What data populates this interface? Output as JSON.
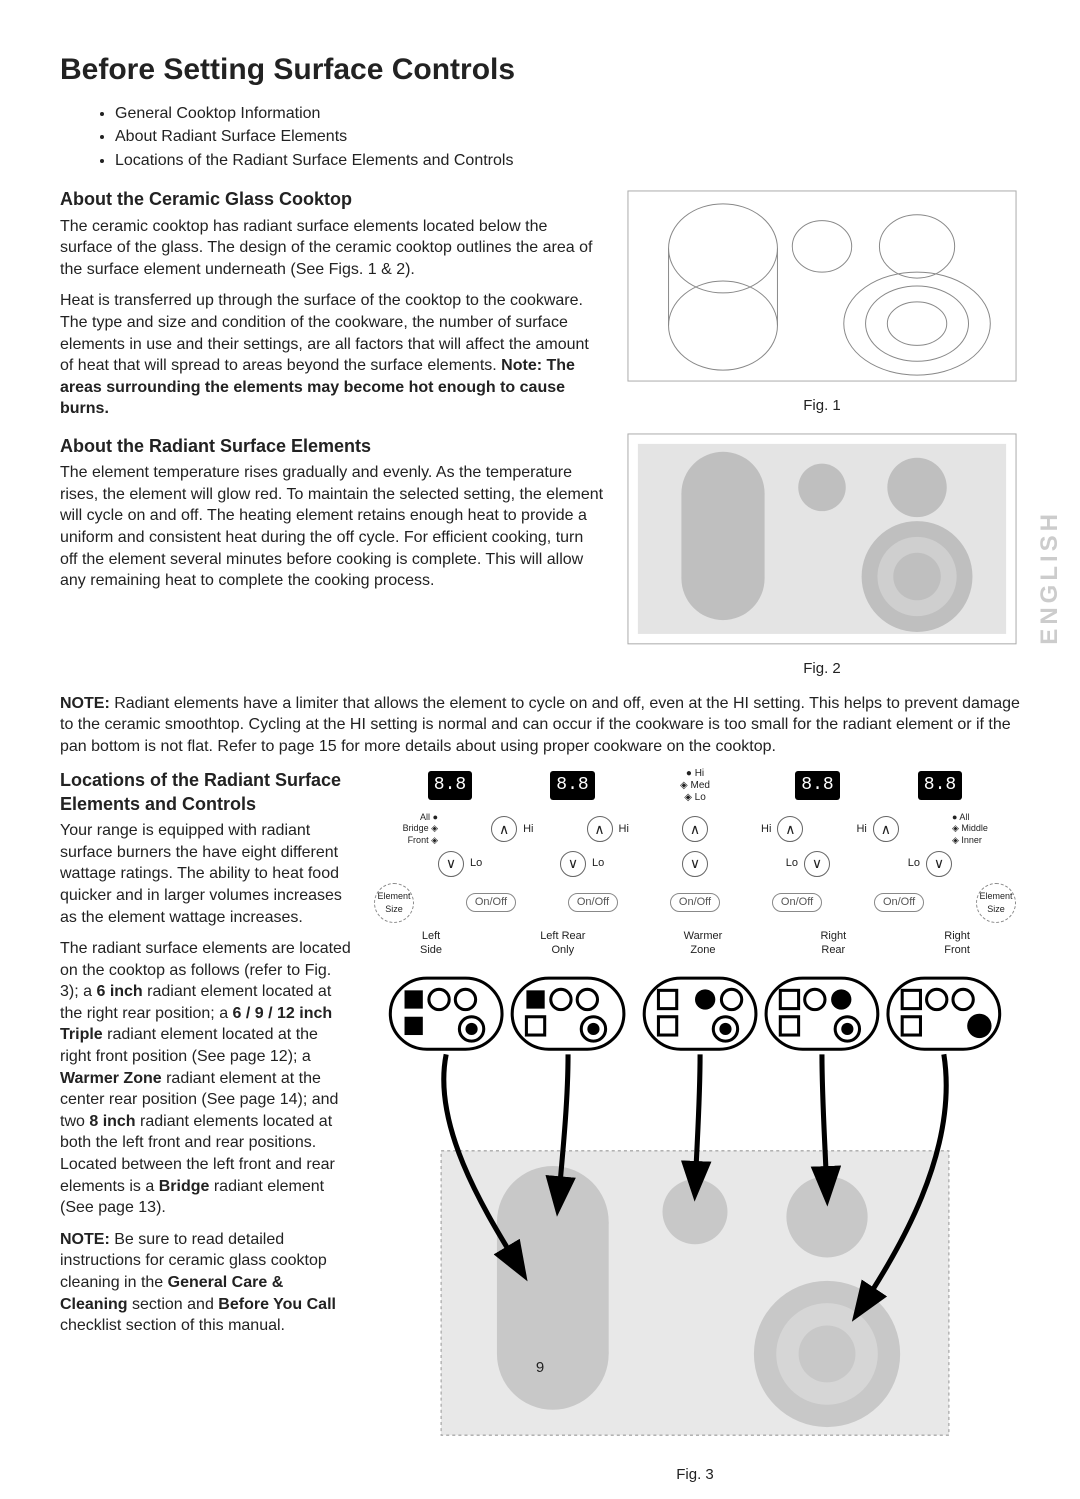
{
  "title": "Before Setting Surface Controls",
  "bullets": [
    "General Cooktop Information",
    "About Radiant Surface Elements",
    "Locations of the Radiant Surface Elements and Controls"
  ],
  "sec1": {
    "heading": "About the Ceramic Glass Cooktop",
    "p1": "The ceramic cooktop has radiant surface elements located below the surface of the glass. The design of the ceramic cooktop outlines the area of the surface element underneath (See Figs. 1 & 2).",
    "p2a": "Heat is transferred up through the surface of the cooktop to the cookware. The type and size and condition of the cookware, the number of surface elements in use and their settings, are all factors that will affect the amount of heat that will spread to areas beyond the surface elements.  ",
    "p2b": "Note: The areas surrounding the elements may become hot enough to cause burns."
  },
  "sec2": {
    "heading": "About the Radiant Surface Elements",
    "p1": "The element temperature rises gradually and evenly. As the temperature rises, the element will glow red. To maintain the selected setting, the element will cycle on and off. The heating element retains enough heat to provide a uniform and consistent heat during the off cycle. For efficient cooking, turn off the element several minutes before cooking is complete. This will allow any remaining heat to complete the cooking process.",
    "note": "Radiant elements have a limiter that allows the element to cycle on and off, even at the HI setting. This helps to prevent damage to the ceramic smoothtop. Cycling at the HI setting is normal and can occur if the cookware is too small for the radiant element or if the pan bottom is not flat. Refer to page 15 for more details about using proper cookware on the cooktop.",
    "notePrefix": "NOTE: "
  },
  "sec3": {
    "heading": "Locations of the Radiant Surface Elements and Controls",
    "p1": "Your range is equipped with radiant surface burners the have eight different wattage ratings. The ability to heat food quicker and in larger volumes increases as the element wattage increases.",
    "p2_parts": [
      {
        "t": "The radiant surface elements are located on the cooktop as follows (refer to Fig. 3); a ",
        "b": false
      },
      {
        "t": "6 inch",
        "b": true
      },
      {
        "t": " radiant element located at the right rear position; a ",
        "b": false
      },
      {
        "t": "6 / 9 / 12 inch Triple",
        "b": true
      },
      {
        "t": " radiant element located at the right front position (See page 12); a ",
        "b": false
      },
      {
        "t": "Warmer Zone",
        "b": true
      },
      {
        "t": " radiant element at the center rear position (See page 14); and two ",
        "b": false
      },
      {
        "t": "8 inch",
        "b": true
      },
      {
        "t": " radiant elements located at both the left front and rear positions. Located between the left front and rear elements is a ",
        "b": false
      },
      {
        "t": "Bridge",
        "b": true
      },
      {
        "t": " radiant element (See page 13).",
        "b": false
      }
    ],
    "p3_parts": [
      {
        "t": "NOTE:",
        "b": true
      },
      {
        "t": "  Be sure to read detailed instructions for ceramic glass cooktop cleaning in the ",
        "b": false
      },
      {
        "t": "General Care & Cleaning",
        "b": true
      },
      {
        "t": " section and ",
        "b": false
      },
      {
        "t": "Before You Call",
        "b": true
      },
      {
        "t": " checklist section of this manual.",
        "b": false
      }
    ]
  },
  "figs": {
    "f1": "Fig. 1",
    "f2": "Fig. 2",
    "f3": "Fig. 3"
  },
  "panel": {
    "display": "8.8",
    "indicator": {
      "hi": "Hi",
      "med": "Med",
      "lo": "Lo"
    },
    "leftInd": {
      "all": "All",
      "bridge": "Bridge",
      "front": "Front"
    },
    "rightInd": {
      "all": "All",
      "middle": "Middle",
      "inner": "Inner"
    },
    "hi": "Hi",
    "lo": "Lo",
    "onoff": "On/Off",
    "elsize": "Element Size",
    "labels": {
      "leftSide": "Left\nSide",
      "leftRear": "Left Rear\nOnly",
      "warmer": "Warmer\nZone",
      "rightRear": "Right\nRear",
      "rightFront": "Right\nFront"
    }
  },
  "sideText": "ENGLISH",
  "pageNum": "9",
  "colors": {
    "text": "#222222",
    "border": "#aaaaaa",
    "displayBg": "#000000",
    "displayFg": "#ffffff",
    "faded": "#cccccc"
  }
}
